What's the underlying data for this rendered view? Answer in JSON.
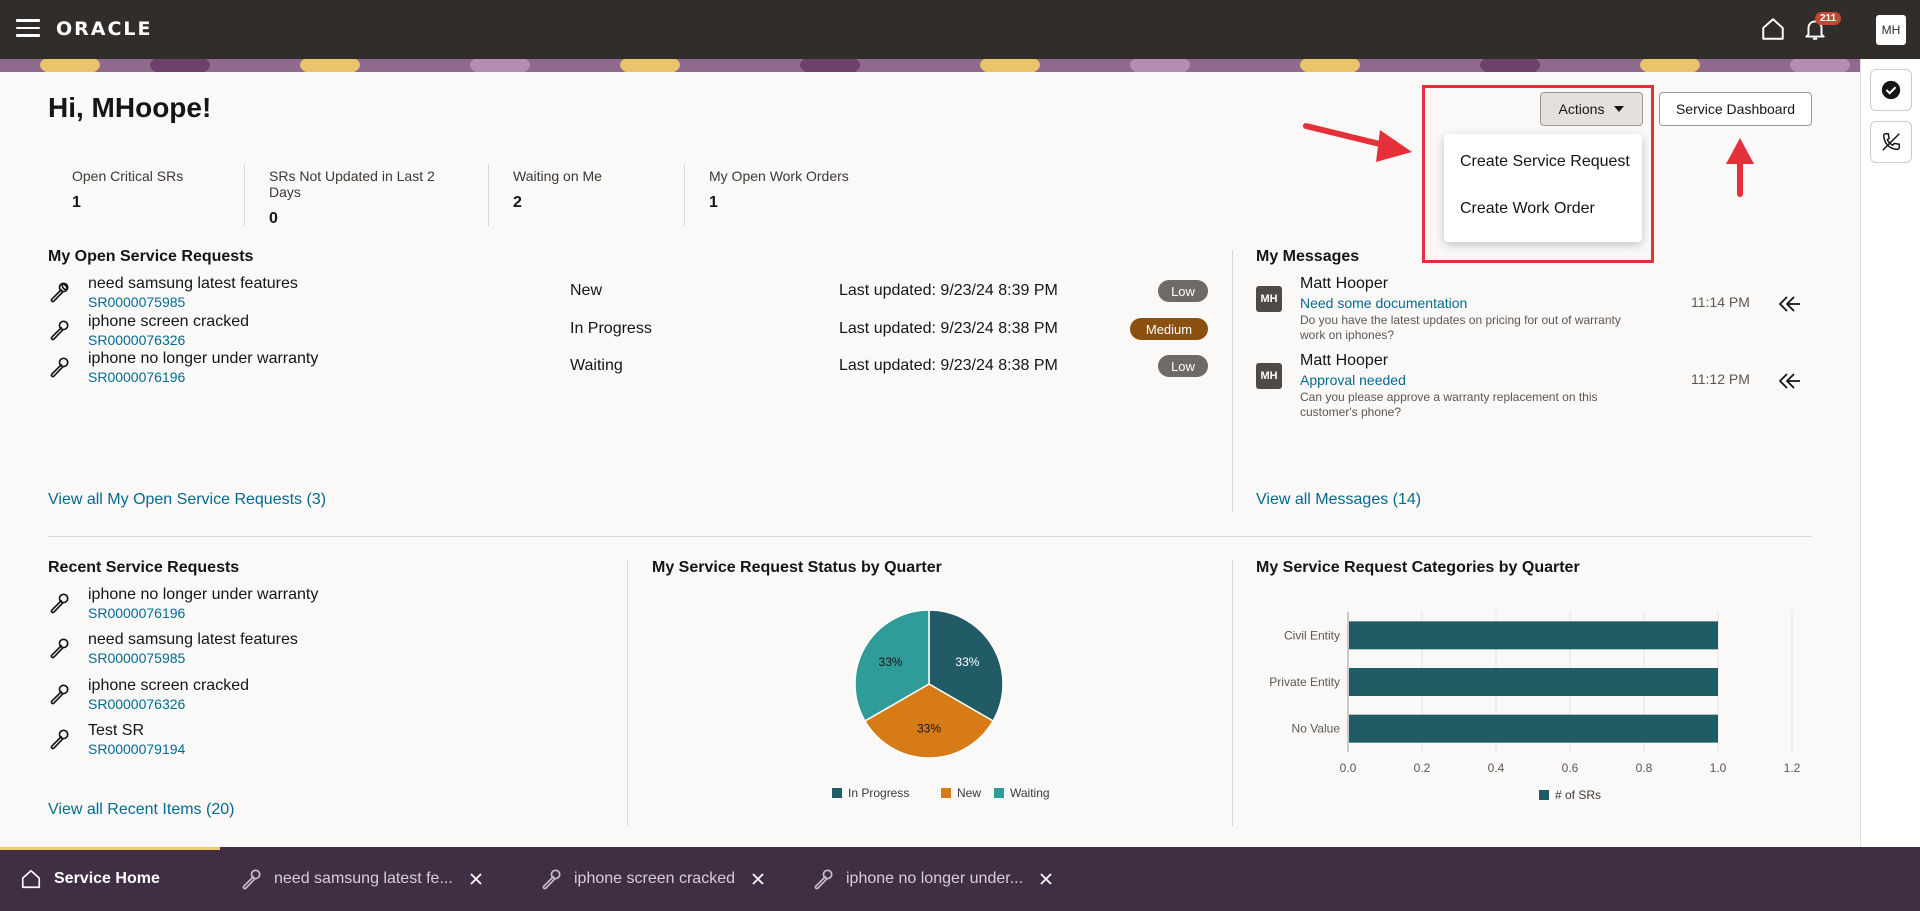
{
  "header": {
    "logo": "ORACLE",
    "notifications_count": "211",
    "user_initials": "MH"
  },
  "greeting": "Hi, MHoope!",
  "actions": {
    "actions_label": "Actions",
    "dashboard_label": "Service Dashboard",
    "menu": [
      "Create Service Request",
      "Create Work Order"
    ]
  },
  "stats": [
    {
      "label": "Open Critical SRs",
      "value": "1"
    },
    {
      "label": "SRs Not Updated in Last 2 Days",
      "value": "0"
    },
    {
      "label": "Waiting on Me",
      "value": "2"
    },
    {
      "label": "My Open Work Orders",
      "value": "1"
    }
  ],
  "open_srs": {
    "title": "My Open Service Requests",
    "rows": [
      {
        "title": "need samsung latest features",
        "id": "SR0000075985",
        "status": "New",
        "updated": "Last updated: 9/23/24 8:39 PM",
        "priority": "Low",
        "priority_color": "#6f6a66"
      },
      {
        "title": "iphone screen cracked",
        "id": "SR0000076326",
        "status": "In Progress",
        "updated": "Last updated: 9/23/24 8:38 PM",
        "priority": "Medium",
        "priority_color": "#8a5010"
      },
      {
        "title": "iphone no longer under warranty",
        "id": "SR0000076196",
        "status": "Waiting",
        "updated": "Last updated: 9/23/24 8:38 PM",
        "priority": "Low",
        "priority_color": "#6f6a66"
      }
    ],
    "view_all": "View all My Open Service Requests (3)"
  },
  "messages": {
    "title": "My Messages",
    "items": [
      {
        "avatar": "MH",
        "from": "Matt Hooper",
        "subject": "Need some documentation",
        "body": "Do you have the latest updates on pricing for out of warranty work on iphones?",
        "time": "11:14 PM"
      },
      {
        "avatar": "MH",
        "from": "Matt Hooper",
        "subject": "Approval needed",
        "body": "Can you please approve a warranty replacement on this customer's phone?",
        "time": "11:12 PM"
      }
    ],
    "view_all": "View all Messages (14)"
  },
  "recent": {
    "title": "Recent Service Requests",
    "rows": [
      {
        "title": "iphone no longer under warranty",
        "id": "SR0000076196"
      },
      {
        "title": "need samsung latest features",
        "id": "SR0000075985"
      },
      {
        "title": "iphone screen cracked",
        "id": "SR0000076326"
      },
      {
        "title": "Test SR",
        "id": "SR0000079194"
      }
    ],
    "view_all": "View all Recent Items (20)"
  },
  "chart_titles": {
    "pie": "My Service Request Status by Quarter",
    "bar": "My Service Request Categories by Quarter"
  },
  "chart_data": [
    {
      "type": "pie",
      "title": "My Service Request Status by Quarter",
      "categories": [
        "In Progress",
        "New",
        "Waiting"
      ],
      "values": [
        33,
        33,
        33
      ],
      "labels": [
        "33%",
        "33%",
        "33%"
      ],
      "colors": [
        "#215b66",
        "#d77b17",
        "#2f9c9a"
      ],
      "legend": "bottom"
    },
    {
      "type": "bar",
      "orientation": "horizontal",
      "title": "My Service Request Categories by Quarter",
      "categories": [
        "Civil Entity",
        "Private Entity",
        "No Value"
      ],
      "series": [
        {
          "name": "# of SRs",
          "values": [
            1.0,
            1.0,
            1.0
          ]
        }
      ],
      "xlim": [
        0,
        1.2
      ],
      "x_ticks": [
        "0.0",
        "0.2",
        "0.4",
        "0.6",
        "0.8",
        "1.0",
        "1.2"
      ],
      "color": "#215b66",
      "grid": true,
      "legend": "bottom"
    }
  ],
  "bottom_tabs": [
    {
      "label": "Service Home"
    },
    {
      "label": "need samsung latest fe..."
    },
    {
      "label": "iphone screen cracked"
    },
    {
      "label": "iphone no longer under..."
    }
  ]
}
